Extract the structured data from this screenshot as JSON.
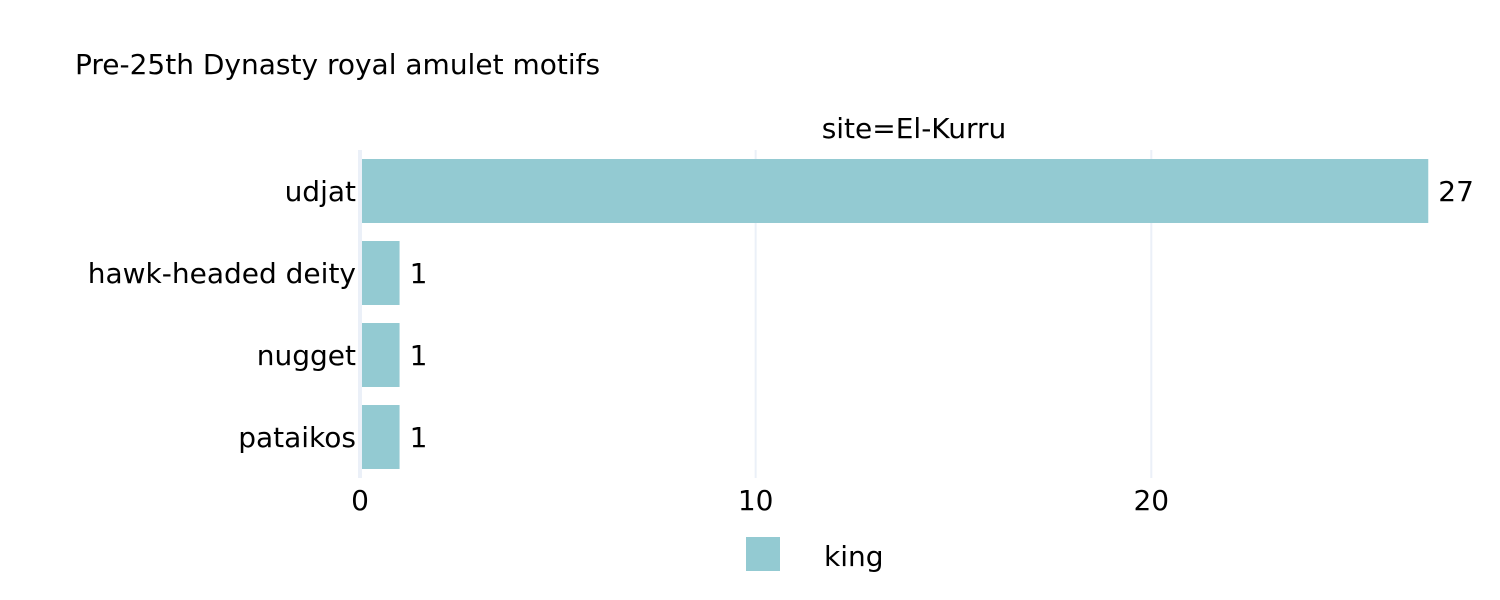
{
  "chart_data": {
    "type": "bar",
    "orientation": "horizontal",
    "title": "Pre-25th Dynasty royal amulet motifs",
    "facet_label": "site=El-Kurru",
    "categories": [
      "udjat",
      "hawk-headed deity",
      "nugget",
      "pataikos"
    ],
    "series": [
      {
        "name": "king",
        "values": [
          27,
          1,
          1,
          1
        ],
        "color": "#93cad2"
      }
    ],
    "data_labels": [
      "27",
      "1",
      "1",
      "1"
    ],
    "xlim": [
      0,
      27.6
    ],
    "x_ticks": [
      0,
      10,
      20
    ],
    "x_tick_labels": [
      "0",
      "10",
      "20"
    ],
    "xlabel": "",
    "ylabel": "",
    "grid": true,
    "grid_color": "#ebf0f8",
    "legend": {
      "placement": "bottom",
      "entries": [
        "king"
      ]
    }
  }
}
